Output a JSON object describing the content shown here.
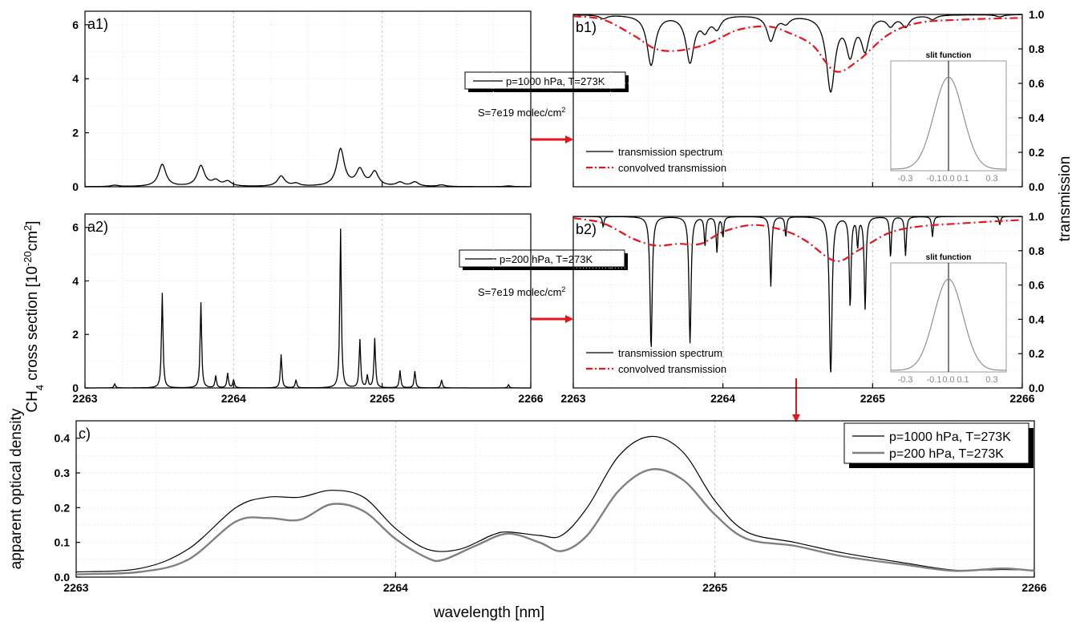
{
  "figure": {
    "xlabel": "wavelength [nm]",
    "ylabel_a_prefix": "CH",
    "ylabel_a_sub": "4",
    "ylabel_a_mid": " cross section [10",
    "ylabel_a_sup": "-20",
    "ylabel_a_unit": "cm",
    "ylabel_a_sup2": "2",
    "ylabel_a_end": "]",
    "ylabel_b": "transmission",
    "ylabel_c": "apparent optical density"
  },
  "chart_data": [
    {
      "id": "a1",
      "type": "line",
      "panel_label": "a1)",
      "xlim": [
        2263,
        2266
      ],
      "ylim": [
        0,
        6.5
      ],
      "xticks": [],
      "yticks": [
        "0",
        "2",
        "4",
        "6"
      ],
      "legend": "p=1000 hPa, T=273K",
      "note_text": "S=7e19 molec/cm",
      "note_sup": "2",
      "series": [
        {
          "name": "p=1000 hPa, T=273K",
          "peaks": [
            [
              2263.2,
              0.05
            ],
            [
              2263.52,
              0.82
            ],
            [
              2263.78,
              0.76
            ],
            [
              2263.88,
              0.2
            ],
            [
              2263.96,
              0.18
            ],
            [
              2264.32,
              0.38
            ],
            [
              2264.42,
              0.1
            ],
            [
              2264.72,
              1.38
            ],
            [
              2264.85,
              0.6
            ],
            [
              2264.95,
              0.52
            ],
            [
              2265.12,
              0.14
            ],
            [
              2265.22,
              0.16
            ],
            [
              2265.4,
              0.06
            ],
            [
              2265.85,
              0.03
            ]
          ]
        }
      ]
    },
    {
      "id": "a2",
      "type": "line",
      "panel_label": "a2)",
      "xlim": [
        2263,
        2266
      ],
      "ylim": [
        0,
        6.5
      ],
      "xticks": [
        "2263",
        "2264",
        "2265",
        "2266"
      ],
      "yticks": [
        "0",
        "2",
        "4",
        "6"
      ],
      "legend": "p=200 hPa, T=273K",
      "note_text": "S=7e19 molec/cm",
      "note_sup": "2",
      "series": [
        {
          "name": "p=200 hPa, T=273K",
          "peaks": [
            [
              2263.2,
              0.15
            ],
            [
              2263.52,
              3.55
            ],
            [
              2263.78,
              3.2
            ],
            [
              2263.88,
              0.45
            ],
            [
              2263.96,
              0.55
            ],
            [
              2264.0,
              0.3
            ],
            [
              2264.32,
              1.25
            ],
            [
              2264.42,
              0.3
            ],
            [
              2264.72,
              5.95
            ],
            [
              2264.85,
              1.8
            ],
            [
              2264.9,
              0.45
            ],
            [
              2264.95,
              1.85
            ],
            [
              2265.12,
              0.65
            ],
            [
              2265.22,
              0.62
            ],
            [
              2265.4,
              0.3
            ],
            [
              2265.85,
              0.12
            ]
          ]
        }
      ]
    },
    {
      "id": "b1",
      "type": "line",
      "panel_label": "b1)",
      "xlim": [
        2263,
        2266
      ],
      "ylim": [
        0,
        1.0
      ],
      "xticks": [],
      "yticks": [
        "0.0",
        "0.2",
        "0.4",
        "0.6",
        "0.8",
        "1.0"
      ],
      "series": [
        {
          "name": "transmission spectrum",
          "color": "#000000",
          "style": "solid"
        },
        {
          "name": "convolved transmission",
          "color": "#e8141c",
          "style": "dashdot",
          "points": [
            [
              2263.0,
              0.99
            ],
            [
              2263.2,
              0.97
            ],
            [
              2263.4,
              0.88
            ],
            [
              2263.55,
              0.8
            ],
            [
              2263.7,
              0.79
            ],
            [
              2263.9,
              0.83
            ],
            [
              2264.1,
              0.91
            ],
            [
              2264.3,
              0.93
            ],
            [
              2264.45,
              0.89
            ],
            [
              2264.6,
              0.82
            ],
            [
              2264.75,
              0.67
            ],
            [
              2264.9,
              0.73
            ],
            [
              2265.1,
              0.88
            ],
            [
              2265.3,
              0.95
            ],
            [
              2265.6,
              0.97
            ],
            [
              2266.0,
              0.98
            ]
          ]
        }
      ],
      "slit": {
        "title": "slit function",
        "xticks": [
          "-0.3",
          "-0.1",
          "0.0",
          "0.1",
          "0.3"
        ]
      }
    },
    {
      "id": "b2",
      "type": "line",
      "panel_label": "b2)",
      "xlim": [
        2263,
        2266
      ],
      "ylim": [
        0,
        1.0
      ],
      "xticks": [
        "2263",
        "2264",
        "2265",
        "2266"
      ],
      "yticks": [
        "0.0",
        "0.2",
        "0.4",
        "0.6",
        "0.8",
        "1.0"
      ],
      "series": [
        {
          "name": "transmission spectrum",
          "color": "#000000",
          "style": "solid"
        },
        {
          "name": "convolved transmission",
          "color": "#e8141c",
          "style": "dashdot",
          "points": [
            [
              2263.0,
              0.99
            ],
            [
              2263.2,
              0.96
            ],
            [
              2263.4,
              0.87
            ],
            [
              2263.55,
              0.83
            ],
            [
              2263.7,
              0.84
            ],
            [
              2263.85,
              0.84
            ],
            [
              2264.0,
              0.91
            ],
            [
              2264.2,
              0.95
            ],
            [
              2264.4,
              0.92
            ],
            [
              2264.55,
              0.86
            ],
            [
              2264.75,
              0.74
            ],
            [
              2264.9,
              0.8
            ],
            [
              2265.1,
              0.9
            ],
            [
              2265.3,
              0.94
            ],
            [
              2265.6,
              0.96
            ],
            [
              2266.0,
              0.98
            ]
          ]
        }
      ],
      "slit": {
        "title": "slit function",
        "xticks": [
          "-0.3",
          "-0.1",
          "0.0",
          "0.1",
          "0.3"
        ]
      }
    },
    {
      "id": "c",
      "type": "line",
      "panel_label": "c)",
      "xlim": [
        2263,
        2266
      ],
      "ylim": [
        0,
        0.45
      ],
      "xticks": [
        "2263",
        "2264",
        "2265",
        "2266"
      ],
      "yticks": [
        "0.0",
        "0.1",
        "0.2",
        "0.3",
        "0.4"
      ],
      "series": [
        {
          "name": "p=1000 hPa, T=273K",
          "color": "#000000",
          "width": 1.2,
          "points": [
            [
              2263.0,
              0.015
            ],
            [
              2263.2,
              0.025
            ],
            [
              2263.35,
              0.08
            ],
            [
              2263.5,
              0.2
            ],
            [
              2263.6,
              0.23
            ],
            [
              2263.7,
              0.23
            ],
            [
              2263.8,
              0.25
            ],
            [
              2263.9,
              0.23
            ],
            [
              2264.0,
              0.14
            ],
            [
              2264.1,
              0.08
            ],
            [
              2264.2,
              0.08
            ],
            [
              2264.3,
              0.12
            ],
            [
              2264.35,
              0.13
            ],
            [
              2264.45,
              0.12
            ],
            [
              2264.52,
              0.12
            ],
            [
              2264.6,
              0.2
            ],
            [
              2264.7,
              0.35
            ],
            [
              2264.8,
              0.405
            ],
            [
              2264.9,
              0.36
            ],
            [
              2265.0,
              0.22
            ],
            [
              2265.1,
              0.13
            ],
            [
              2265.25,
              0.1
            ],
            [
              2265.4,
              0.07
            ],
            [
              2265.6,
              0.04
            ],
            [
              2265.75,
              0.02
            ],
            [
              2265.9,
              0.022
            ],
            [
              2266.0,
              0.02
            ]
          ]
        },
        {
          "name": "p=200 hPa,  T=273K",
          "color": "#808080",
          "width": 2.4,
          "points": [
            [
              2263.0,
              0.008
            ],
            [
              2263.2,
              0.015
            ],
            [
              2263.35,
              0.05
            ],
            [
              2263.5,
              0.16
            ],
            [
              2263.6,
              0.17
            ],
            [
              2263.7,
              0.165
            ],
            [
              2263.8,
              0.21
            ],
            [
              2263.9,
              0.19
            ],
            [
              2264.0,
              0.11
            ],
            [
              2264.1,
              0.055
            ],
            [
              2264.15,
              0.05
            ],
            [
              2264.25,
              0.09
            ],
            [
              2264.35,
              0.125
            ],
            [
              2264.45,
              0.1
            ],
            [
              2264.52,
              0.075
            ],
            [
              2264.6,
              0.12
            ],
            [
              2264.7,
              0.25
            ],
            [
              2264.8,
              0.31
            ],
            [
              2264.9,
              0.28
            ],
            [
              2265.0,
              0.18
            ],
            [
              2265.1,
              0.11
            ],
            [
              2265.25,
              0.09
            ],
            [
              2265.4,
              0.06
            ],
            [
              2265.6,
              0.035
            ],
            [
              2265.75,
              0.018
            ],
            [
              2265.9,
              0.025
            ],
            [
              2266.0,
              0.018
            ]
          ]
        }
      ]
    }
  ]
}
